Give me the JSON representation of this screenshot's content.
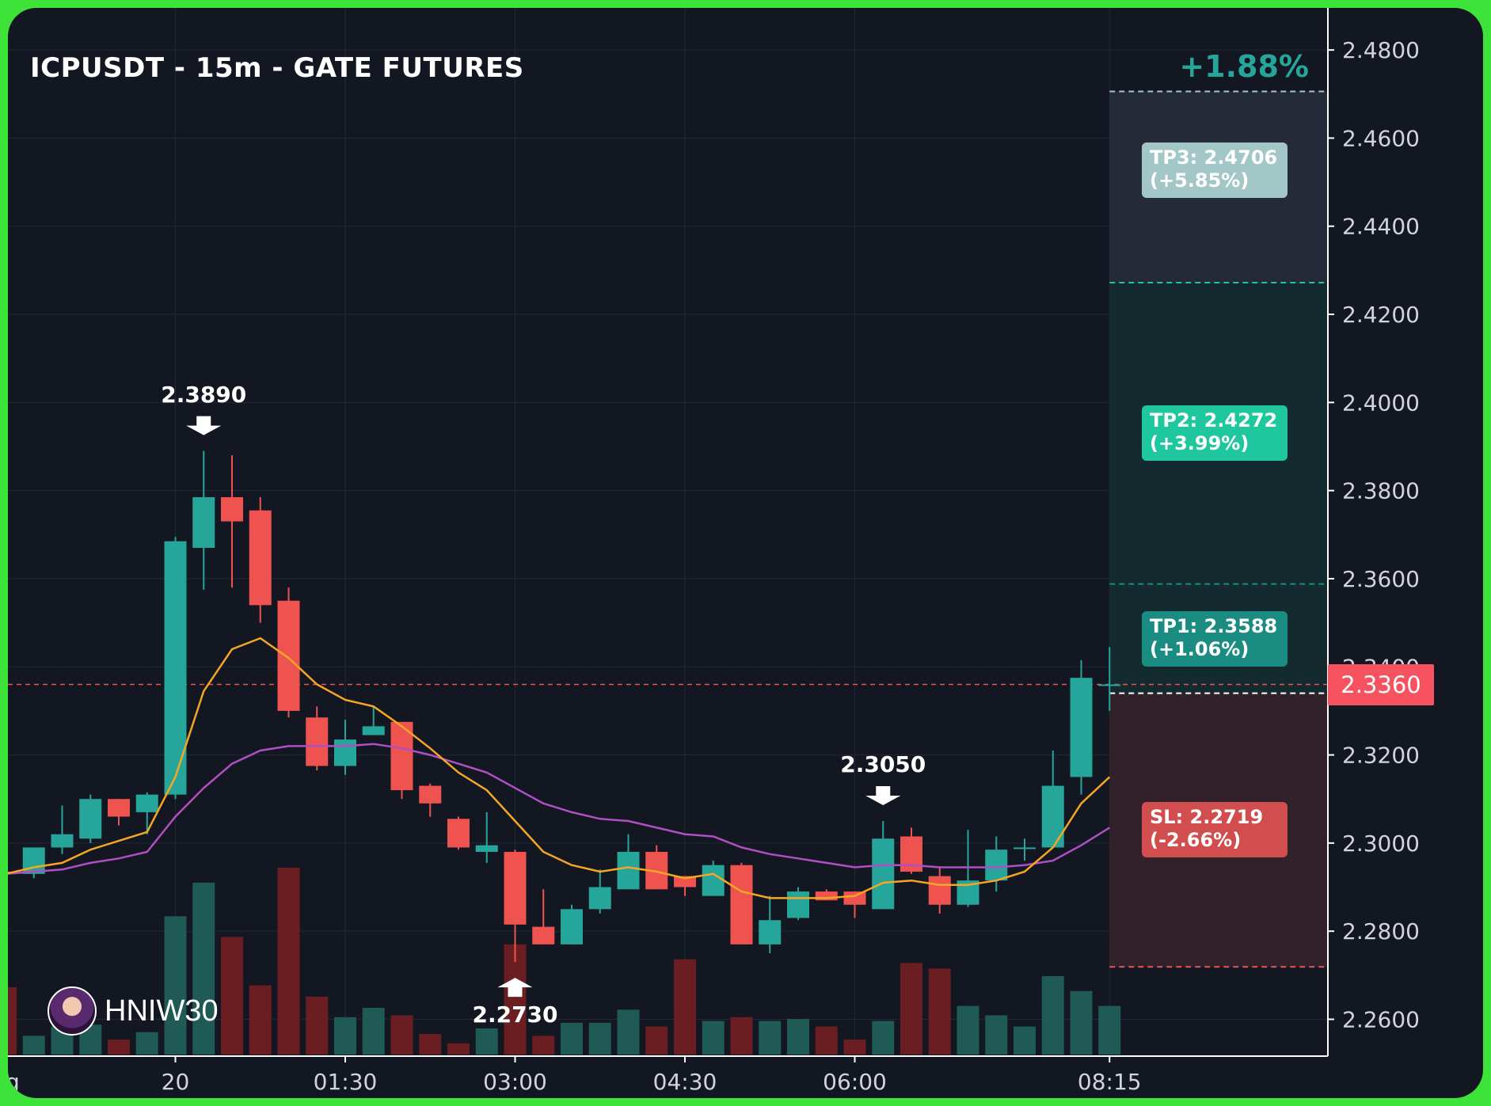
{
  "chart_data": {
    "type": "candlestick",
    "title": "ICPUSDT - 15m - GATE FUTURES",
    "change_label": "+1.88%",
    "y_ticks": [
      "2.4800",
      "2.4600",
      "2.4400",
      "2.4200",
      "2.4000",
      "2.3800",
      "2.3600",
      "2.3400",
      "2.3200",
      "2.3000",
      "2.2800",
      "2.2600"
    ],
    "ylim": [
      2.252,
      2.482
    ],
    "x_ticks": [
      {
        "label": "ug",
        "index": -6
      },
      {
        "label": "20",
        "index": 0
      },
      {
        "label": "01:30",
        "index": 6
      },
      {
        "label": "03:00",
        "index": 12
      },
      {
        "label": "04:30",
        "index": 18
      },
      {
        "label": "06:00",
        "index": 24
      },
      {
        "label": "08:15",
        "index": 33
      }
    ],
    "candles": [
      {
        "i": -6,
        "o": 2.2935,
        "h": 2.296,
        "l": 2.292,
        "c": 2.293,
        "v": 0.36
      },
      {
        "i": -5,
        "o": 2.293,
        "h": 2.2985,
        "l": 2.292,
        "c": 2.299,
        "v": 0.1
      },
      {
        "i": -4,
        "o": 2.299,
        "h": 2.3085,
        "l": 2.2975,
        "c": 2.302,
        "v": 0.15
      },
      {
        "i": -3,
        "o": 2.301,
        "h": 2.311,
        "l": 2.3,
        "c": 2.31,
        "v": 0.16
      },
      {
        "i": -2,
        "o": 2.31,
        "h": 2.31,
        "l": 2.304,
        "c": 2.306,
        "v": 0.08
      },
      {
        "i": -1,
        "o": 2.307,
        "h": 2.3115,
        "l": 2.302,
        "c": 2.311,
        "v": 0.12
      },
      {
        "i": 0,
        "o": 2.311,
        "h": 2.3695,
        "l": 2.31,
        "c": 2.3685,
        "v": 0.74
      },
      {
        "i": 1,
        "o": 2.367,
        "h": 2.389,
        "l": 2.3575,
        "c": 2.3785,
        "v": 0.92
      },
      {
        "i": 2,
        "o": 2.3785,
        "h": 2.388,
        "l": 2.358,
        "c": 2.373,
        "v": 0.63
      },
      {
        "i": 3,
        "o": 2.3755,
        "h": 2.3785,
        "l": 2.35,
        "c": 2.354,
        "v": 0.37
      },
      {
        "i": 4,
        "o": 2.355,
        "h": 2.358,
        "l": 2.3285,
        "c": 2.33,
        "v": 1.0
      },
      {
        "i": 5,
        "o": 2.3285,
        "h": 2.331,
        "l": 2.3165,
        "c": 2.3175,
        "v": 0.31
      },
      {
        "i": 6,
        "o": 2.3175,
        "h": 2.328,
        "l": 2.3155,
        "c": 2.3235,
        "v": 0.2
      },
      {
        "i": 7,
        "o": 2.3245,
        "h": 2.331,
        "l": 2.3245,
        "c": 2.3265,
        "v": 0.25
      },
      {
        "i": 8,
        "o": 2.3275,
        "h": 2.3275,
        "l": 2.31,
        "c": 2.312,
        "v": 0.21
      },
      {
        "i": 9,
        "o": 2.313,
        "h": 2.3135,
        "l": 2.306,
        "c": 2.309,
        "v": 0.11
      },
      {
        "i": 10,
        "o": 2.3055,
        "h": 2.306,
        "l": 2.2985,
        "c": 2.299,
        "v": 0.06
      },
      {
        "i": 11,
        "o": 2.298,
        "h": 2.307,
        "l": 2.2955,
        "c": 2.2995,
        "v": 0.14
      },
      {
        "i": 12,
        "o": 2.298,
        "h": 2.2985,
        "l": 2.273,
        "c": 2.2815,
        "v": 0.59
      },
      {
        "i": 13,
        "o": 2.281,
        "h": 2.2895,
        "l": 2.277,
        "c": 2.277,
        "v": 0.1
      },
      {
        "i": 14,
        "o": 2.277,
        "h": 2.286,
        "l": 2.277,
        "c": 2.285,
        "v": 0.17
      },
      {
        "i": 15,
        "o": 2.285,
        "h": 2.294,
        "l": 2.284,
        "c": 2.29,
        "v": 0.17
      },
      {
        "i": 16,
        "o": 2.2895,
        "h": 2.302,
        "l": 2.2895,
        "c": 2.298,
        "v": 0.24
      },
      {
        "i": 17,
        "o": 2.298,
        "h": 2.2995,
        "l": 2.2895,
        "c": 2.2895,
        "v": 0.15
      },
      {
        "i": 18,
        "o": 2.2925,
        "h": 2.2925,
        "l": 2.288,
        "c": 2.29,
        "v": 0.51
      },
      {
        "i": 19,
        "o": 2.288,
        "h": 2.296,
        "l": 2.288,
        "c": 2.295,
        "v": 0.18
      },
      {
        "i": 20,
        "o": 2.295,
        "h": 2.2955,
        "l": 2.277,
        "c": 2.277,
        "v": 0.2
      },
      {
        "i": 21,
        "o": 2.277,
        "h": 2.288,
        "l": 2.275,
        "c": 2.2825,
        "v": 0.18
      },
      {
        "i": 22,
        "o": 2.283,
        "h": 2.29,
        "l": 2.2825,
        "c": 2.289,
        "v": 0.19
      },
      {
        "i": 23,
        "o": 2.289,
        "h": 2.2895,
        "l": 2.287,
        "c": 2.287,
        "v": 0.15
      },
      {
        "i": 24,
        "o": 2.289,
        "h": 2.289,
        "l": 2.283,
        "c": 2.286,
        "v": 0.08
      },
      {
        "i": 25,
        "o": 2.285,
        "h": 2.305,
        "l": 2.285,
        "c": 2.301,
        "v": 0.18
      },
      {
        "i": 26,
        "o": 2.3015,
        "h": 2.3035,
        "l": 2.293,
        "c": 2.2935,
        "v": 0.49
      },
      {
        "i": 27,
        "o": 2.2925,
        "h": 2.2945,
        "l": 2.284,
        "c": 2.286,
        "v": 0.46
      },
      {
        "i": 28,
        "o": 2.286,
        "h": 2.303,
        "l": 2.2855,
        "c": 2.2915,
        "v": 0.26
      },
      {
        "i": 29,
        "o": 2.2915,
        "h": 2.3015,
        "l": 2.289,
        "c": 2.2985,
        "v": 0.21
      },
      {
        "i": 30,
        "o": 2.299,
        "h": 2.301,
        "l": 2.296,
        "c": 2.299,
        "v": 0.15
      },
      {
        "i": 31,
        "o": 2.299,
        "h": 2.321,
        "l": 2.299,
        "c": 2.313,
        "v": 0.42
      },
      {
        "i": 32,
        "o": 2.315,
        "h": 2.3415,
        "l": 2.311,
        "c": 2.3375,
        "v": 0.34
      },
      {
        "i": 33,
        "o": 2.336,
        "h": 2.3445,
        "l": 2.33,
        "c": 2.336,
        "v": 0.26
      }
    ],
    "ma_fast": [
      2.293,
      2.2945,
      2.2955,
      2.2985,
      2.3005,
      2.3025,
      2.315,
      2.3345,
      2.344,
      2.3465,
      2.342,
      2.336,
      2.3325,
      2.331,
      2.3265,
      2.3215,
      2.316,
      2.312,
      2.305,
      2.298,
      2.295,
      2.2935,
      2.2945,
      2.2935,
      2.292,
      2.293,
      2.289,
      2.2875,
      2.2875,
      2.2875,
      2.288,
      2.291,
      2.2915,
      2.2905,
      2.2905,
      2.2915,
      2.2935,
      2.299,
      2.309,
      2.315
    ],
    "ma_slow": [
      2.293,
      2.2935,
      2.294,
      2.2955,
      2.2965,
      2.298,
      2.306,
      2.3125,
      2.318,
      2.321,
      2.322,
      2.322,
      2.322,
      2.3225,
      2.3215,
      2.32,
      2.318,
      2.316,
      2.3125,
      2.309,
      2.307,
      2.3055,
      2.305,
      2.3035,
      2.302,
      2.3015,
      2.299,
      2.2975,
      2.2965,
      2.2955,
      2.2945,
      2.295,
      2.295,
      2.2945,
      2.2945,
      2.2945,
      2.295,
      2.296,
      2.2995,
      2.3035
    ],
    "annotations": [
      {
        "price": 2.389,
        "label": "2.3890",
        "index": 1,
        "type": "high"
      },
      {
        "price": 2.273,
        "label": "2.2730",
        "index": 12,
        "type": "low"
      },
      {
        "price": 2.305,
        "label": "2.3050",
        "index": 25,
        "type": "high"
      }
    ],
    "current_price": {
      "value": 2.336,
      "label": "2.3360"
    },
    "entry_price": 2.334,
    "levels": [
      {
        "name": "TP3",
        "price": 2.4706,
        "text": "TP3: 2.4706",
        "pct": "(+5.85%)",
        "color": "#a3c6c6"
      },
      {
        "name": "TP2",
        "price": 2.4272,
        "text": "TP2: 2.4272",
        "pct": "(+3.99%)",
        "color": "#1ec79d"
      },
      {
        "name": "TP1",
        "price": 2.3588,
        "text": "TP1: 2.3588",
        "pct": "(+1.06%)",
        "color": "#1b8c82"
      },
      {
        "name": "SL",
        "price": 2.2719,
        "text": "SL: 2.2719",
        "pct": "(-2.66%)",
        "color": "#d24e4e"
      }
    ],
    "colors": {
      "up": "#26a69a",
      "down": "#ef5350",
      "ma_fast": "#f5a623",
      "ma_slow": "#b04fc4",
      "bg": "#131722"
    }
  },
  "author": {
    "name": "HNIW30",
    "avatar_icon": "avatar-icon"
  }
}
